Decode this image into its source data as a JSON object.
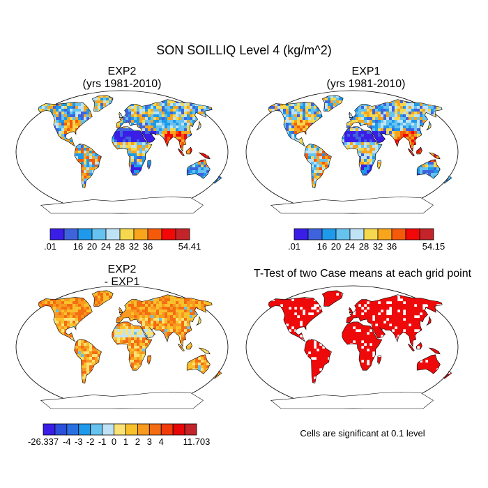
{
  "title": "SON SOILLIQ Level 4 (kg/m^2)",
  "panels": {
    "exp2": {
      "line1": "EXP2",
      "line2": "(yrs 1981-2010)"
    },
    "exp1": {
      "line1": "EXP1",
      "line2": "(yrs 1981-2010)"
    },
    "diff": {
      "line1": "EXP2",
      "line2": "- EXP1"
    },
    "ttest": {
      "title": "T-Test of two Case means at each grid point",
      "note": "Cells are significant at 0.1 level"
    }
  },
  "colorbars": {
    "exp2": {
      "colors": [
        "#3a1ee8",
        "#3f63dc",
        "#1f99e9",
        "#66c2ef",
        "#bfe3f5",
        "#f6d84f",
        "#f8a51c",
        "#f45a0a",
        "#f30808",
        "#c2242a"
      ],
      "labels": [
        ".01",
        "16",
        "20",
        "24",
        "28",
        "32",
        "36",
        "54.41"
      ],
      "label_boundaries": [
        0,
        2,
        3,
        4,
        5,
        6,
        7,
        10
      ]
    },
    "exp1": {
      "colors": [
        "#3a1ee8",
        "#3f63dc",
        "#1f99e9",
        "#66c2ef",
        "#bfe3f5",
        "#f6d84f",
        "#f8a51c",
        "#f45a0a",
        "#f30808",
        "#c2242a"
      ],
      "labels": [
        ".01",
        "16",
        "20",
        "24",
        "28",
        "32",
        "36",
        "54.15"
      ],
      "label_boundaries": [
        0,
        2,
        3,
        4,
        5,
        6,
        7,
        10
      ]
    },
    "diff": {
      "colors": [
        "#3a1ee8",
        "#2c4fdc",
        "#2a70e2",
        "#1f99e9",
        "#66c2ef",
        "#bfe3f5",
        "#fbe276",
        "#f8c12c",
        "#f89a1e",
        "#f46d12",
        "#f23b0b",
        "#e60707",
        "#c2242a"
      ],
      "labels": [
        "-26.337",
        "-4",
        "-3",
        "-2",
        "-1",
        "0",
        "1",
        "2",
        "3",
        "4",
        "11.703"
      ],
      "label_boundaries": [
        0,
        2,
        3,
        4,
        5,
        6,
        7,
        8,
        9,
        10,
        13
      ]
    }
  },
  "colors": {
    "ocean": "#ffffff",
    "coast": "#000000",
    "significant": "#ee0a0a"
  }
}
